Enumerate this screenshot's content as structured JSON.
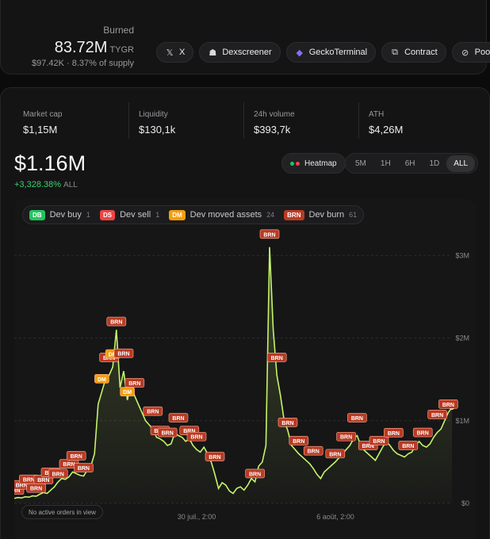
{
  "burned": {
    "label": "Burned",
    "amount": "83.72M",
    "unit": "TYGR",
    "sub": "$97.42K · 8.37% of supply"
  },
  "links": [
    {
      "label": "X",
      "icon": "x-icon"
    },
    {
      "label": "Dexscreener",
      "icon": "dexscreener-icon"
    },
    {
      "label": "GeckoTerminal",
      "icon": "geckoterminal-icon"
    },
    {
      "label": "Contract",
      "icon": "copy-icon"
    },
    {
      "label": "Pool",
      "icon": "link-icon"
    }
  ],
  "stats": [
    {
      "label": "Market cap",
      "value": "$1,15M"
    },
    {
      "label": "Liquidity",
      "value": "$130,1k"
    },
    {
      "label": "24h volume",
      "value": "$393,7k"
    },
    {
      "label": "ATH",
      "value": "$4,26M"
    }
  ],
  "price": {
    "value": "$1.16M",
    "change": "+3,328.38%",
    "range": "ALL"
  },
  "heatmap_label": "Heatmap",
  "ranges": [
    "5M",
    "1H",
    "6H",
    "1D",
    "ALL"
  ],
  "active_range": "ALL",
  "legend": [
    {
      "tag": "DB",
      "label": "Dev buy",
      "count": "1",
      "color": "#22c55e"
    },
    {
      "tag": "DS",
      "label": "Dev sell",
      "count": "1",
      "color": "#ef4444"
    },
    {
      "tag": "DM",
      "label": "Dev moved assets",
      "count": "24",
      "color": "#f59e0b"
    },
    {
      "tag": "BRN",
      "label": "Dev burn",
      "count": "61",
      "color": "#b93a23"
    }
  ],
  "orders_note": "No active orders in view",
  "colors": {
    "line": "#c6f36a",
    "accent_green": "#3ecf6e"
  },
  "chart_data": {
    "type": "line",
    "x_ticks": [
      "30 juil., 2:00",
      "6 août, 2:00"
    ],
    "y_ticks": [
      "$0",
      "$1M",
      "$2M",
      "$3M"
    ],
    "ylim": [
      0,
      3300000
    ],
    "series": [
      {
        "values": [
          60000,
          70000,
          65000,
          80000,
          75000,
          90000,
          85000,
          110000,
          130000,
          120000,
          160000,
          200000,
          260000,
          300000,
          290000,
          320000,
          380000,
          360000,
          340000,
          330000,
          400000,
          450000,
          600000,
          1200000,
          1350000,
          1500000,
          1550000,
          1650000,
          2100000,
          1400000,
          1600000,
          1250000,
          1450000,
          1300000,
          1200000,
          1100000,
          1000000,
          950000,
          900000,
          800000,
          780000,
          750000,
          700000,
          720000,
          850000,
          820000,
          800000,
          750000,
          780000,
          700000,
          650000,
          620000,
          680000,
          600000,
          500000,
          350000,
          180000,
          250000,
          220000,
          150000,
          120000,
          180000,
          200000,
          160000,
          220000,
          300000,
          260000,
          450000,
          500000,
          700000,
          3100000,
          2100000,
          1550000,
          1300000,
          1000000,
          880000,
          700000,
          650000,
          600000,
          560000,
          520000,
          480000,
          420000,
          350000,
          300000,
          380000,
          420000,
          460000,
          500000,
          550000,
          600000,
          650000,
          700000,
          780000,
          820000,
          700000,
          640000,
          600000,
          560000,
          520000,
          600000,
          680000,
          750000,
          700000,
          640000,
          600000,
          580000,
          560000,
          600000,
          620000,
          700000,
          750000,
          700000,
          680000,
          720000,
          800000,
          860000,
          900000,
          1000000,
          1100000,
          1160000
        ]
      }
    ],
    "markers": [
      {
        "tag": "BRN",
        "idx": 0
      },
      {
        "tag": "BRN",
        "idx": 2
      },
      {
        "tag": "BRN",
        "idx": 4
      },
      {
        "tag": "BRN",
        "idx": 6
      },
      {
        "tag": "BRN",
        "idx": 8
      },
      {
        "tag": "BRN",
        "idx": 10
      },
      {
        "tag": "BRN",
        "idx": 12
      },
      {
        "tag": "BRN",
        "idx": 15
      },
      {
        "tag": "BRN",
        "idx": 17
      },
      {
        "tag": "BRN",
        "idx": 19
      },
      {
        "tag": "DM",
        "idx": 24
      },
      {
        "tag": "BRN",
        "idx": 26
      },
      {
        "tag": "BRN",
        "idx": 28
      },
      {
        "tag": "DM",
        "idx": 27
      },
      {
        "tag": "BRN",
        "idx": 30
      },
      {
        "tag": "DM",
        "idx": 31
      },
      {
        "tag": "BRN",
        "idx": 33
      },
      {
        "tag": "BRN",
        "idx": 38
      },
      {
        "tag": "BRN",
        "idx": 40
      },
      {
        "tag": "BRN",
        "idx": 42
      },
      {
        "tag": "BRN",
        "idx": 45
      },
      {
        "tag": "BRN",
        "idx": 48
      },
      {
        "tag": "BRN",
        "idx": 50
      },
      {
        "tag": "BRN",
        "idx": 55
      },
      {
        "tag": "BRN",
        "idx": 66
      },
      {
        "tag": "BRN",
        "idx": 70
      },
      {
        "tag": "BRN",
        "idx": 72
      },
      {
        "tag": "BRN",
        "idx": 75
      },
      {
        "tag": "BRN",
        "idx": 78
      },
      {
        "tag": "BRN",
        "idx": 82
      },
      {
        "tag": "BRN",
        "idx": 88
      },
      {
        "tag": "BRN",
        "idx": 91
      },
      {
        "tag": "BRN",
        "idx": 94
      },
      {
        "tag": "BRN",
        "idx": 97
      },
      {
        "tag": "BRN",
        "idx": 100
      },
      {
        "tag": "BRN",
        "idx": 104
      },
      {
        "tag": "BRN",
        "idx": 108
      },
      {
        "tag": "BRN",
        "idx": 112
      },
      {
        "tag": "BRN",
        "idx": 116
      },
      {
        "tag": "BRN",
        "idx": 119
      }
    ]
  }
}
